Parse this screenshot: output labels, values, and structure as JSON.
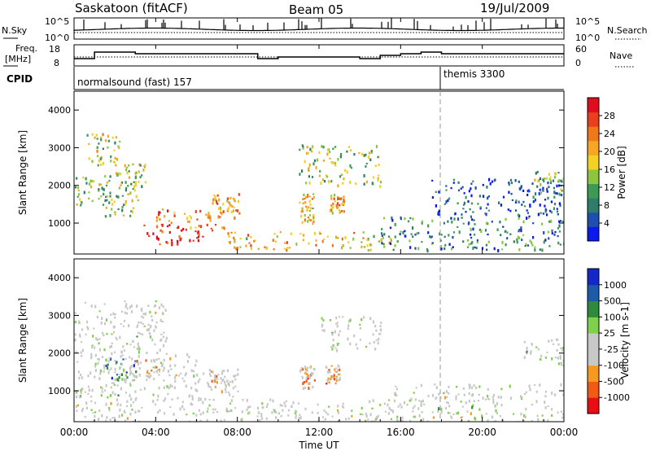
{
  "header": {
    "station": "Saskatoon (fitACF)",
    "beam": "Beam 05",
    "date": "19/Jul/2009"
  },
  "colors": {
    "power_scale": [
      "#0a19f0",
      "#1e4fb0",
      "#2e7d6a",
      "#3d9a55",
      "#8cc63f",
      "#f2d024",
      "#f5a623",
      "#f07818",
      "#e8401e",
      "#e00d1e"
    ],
    "velocity_scale": [
      "#e80e14",
      "#f05a14",
      "#f59a1e",
      "#c8c8c8",
      "#c8c8c8",
      "#7fd04a",
      "#2e8a3c",
      "#1e5aaa",
      "#1428c8"
    ],
    "ground_scatter": "#c0c0c0"
  },
  "noise_panel": {
    "left_label": "N.Sky",
    "right_label": "N.Search",
    "left_ticks": [
      "10^5",
      "10^0"
    ],
    "right_ticks": [
      "10^5",
      "10^0"
    ]
  },
  "freq_panel": {
    "left_label_1": "Freq.",
    "left_label_2": "[MHz]",
    "left_ticks": [
      "18",
      "8"
    ],
    "right_label": "Nave",
    "right_ticks": [
      "60",
      "0"
    ]
  },
  "cpid_panel": {
    "label": "CPID",
    "modes": [
      {
        "name": "normalsound (fast) 157"
      },
      {
        "name": "themis 3300"
      }
    ]
  },
  "chart_data": [
    {
      "type": "heatmap",
      "name": "power",
      "ylabel": "Slant Range [km]",
      "yticks": [
        "1000",
        "2000",
        "3000",
        "4000"
      ],
      "ylim": [
        180,
        4500
      ],
      "xlim": [
        0,
        24
      ],
      "colorbar_label": "Power [dB]",
      "colorbar_ticks": [
        "4",
        "8",
        "12",
        "16",
        "20",
        "24",
        "28"
      ],
      "regions": [
        {
          "t0": 0.0,
          "t1": 1.8,
          "r0": 1500,
          "r1": 2300,
          "level": 0.45
        },
        {
          "t0": 0.6,
          "t1": 2.2,
          "r0": 2500,
          "r1": 3400,
          "level": 0.5
        },
        {
          "t0": 1.5,
          "t1": 3.2,
          "r0": 1200,
          "r1": 2000,
          "level": 0.45
        },
        {
          "t0": 2.0,
          "t1": 3.5,
          "r0": 2000,
          "r1": 2600,
          "level": 0.5
        },
        {
          "t0": 3.4,
          "t1": 6.5,
          "r0": 400,
          "r1": 1000,
          "level": 0.95
        },
        {
          "t0": 4.0,
          "t1": 7.5,
          "r0": 800,
          "r1": 1400,
          "level": 0.75
        },
        {
          "t0": 6.5,
          "t1": 8.2,
          "r0": 1100,
          "r1": 1800,
          "level": 0.7
        },
        {
          "t0": 7.5,
          "t1": 15.5,
          "r0": 300,
          "r1": 800,
          "level": 0.6
        },
        {
          "t0": 11.0,
          "t1": 11.8,
          "r0": 1000,
          "r1": 1800,
          "level": 0.6
        },
        {
          "t0": 12.5,
          "t1": 13.2,
          "r0": 1300,
          "r1": 1800,
          "level": 0.65
        },
        {
          "t0": 11.0,
          "t1": 15.0,
          "r0": 2000,
          "r1": 3100,
          "level": 0.45
        },
        {
          "t0": 15.0,
          "t1": 24.0,
          "r0": 300,
          "r1": 1200,
          "level": 0.25
        },
        {
          "t0": 17.5,
          "t1": 24.0,
          "r0": 1200,
          "r1": 2200,
          "level": 0.15
        },
        {
          "t0": 22.5,
          "t1": 24.0,
          "r0": 1800,
          "r1": 2400,
          "level": 0.4
        }
      ]
    },
    {
      "type": "heatmap",
      "name": "velocity",
      "ylabel": "Slant Range [km]",
      "yticks": [
        "1000",
        "2000",
        "3000",
        "4000"
      ],
      "ylim": [
        180,
        4500
      ],
      "xlim": [
        0,
        24
      ],
      "xticks": [
        "00:00",
        "04:00",
        "08:00",
        "12:00",
        "16:00",
        "20:00",
        "00:00"
      ],
      "xtick_values": [
        0,
        4,
        8,
        12,
        16,
        20,
        24
      ],
      "xlabel": "Time UT",
      "colorbar_label": "Velocity [m s-1]",
      "colorbar_ticks": [
        "1000",
        "500",
        "100",
        "25",
        "-25",
        "-100",
        "-500",
        "-1000"
      ],
      "regions": [
        {
          "t0": 0.0,
          "t1": 4.5,
          "r0": 1500,
          "r1": 3400,
          "level": 0.5
        },
        {
          "t0": 0.0,
          "t1": 8.0,
          "r0": 200,
          "r1": 1500,
          "level": 0.5
        },
        {
          "t0": 1.5,
          "t1": 3.0,
          "r0": 1300,
          "r1": 1900,
          "level": 0.75
        },
        {
          "t0": 3.0,
          "t1": 6.0,
          "r0": 1400,
          "r1": 2000,
          "level": 0.3
        },
        {
          "t0": 6.5,
          "t1": 8.0,
          "r0": 1100,
          "r1": 1600,
          "level": 0.35
        },
        {
          "t0": 8.0,
          "t1": 16.0,
          "r0": 200,
          "r1": 800,
          "level": 0.5
        },
        {
          "t0": 11.0,
          "t1": 11.8,
          "r0": 1100,
          "r1": 1700,
          "level": 0.25
        },
        {
          "t0": 12.3,
          "t1": 13.0,
          "r0": 1200,
          "r1": 1700,
          "level": 0.25
        },
        {
          "t0": 12.0,
          "t1": 15.0,
          "r0": 2100,
          "r1": 3000,
          "level": 0.5
        },
        {
          "t0": 15.5,
          "t1": 24.0,
          "r0": 200,
          "r1": 1200,
          "level": 0.5
        },
        {
          "t0": 22.0,
          "t1": 24.0,
          "r0": 1700,
          "r1": 2400,
          "level": 0.5
        }
      ]
    }
  ]
}
